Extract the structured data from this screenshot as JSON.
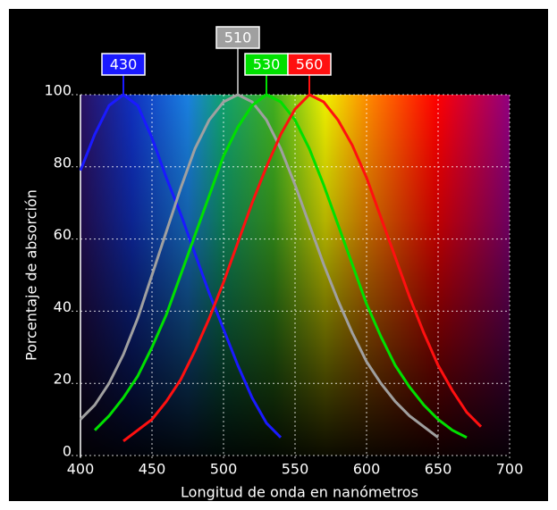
{
  "chart_data": {
    "type": "line",
    "xlabel": "Longitud de onda en nanómetros",
    "ylabel": "Porcentaje de absorción",
    "x": [
      400,
      410,
      420,
      430,
      440,
      450,
      460,
      470,
      480,
      490,
      500,
      510,
      520,
      530,
      540,
      550,
      560,
      570,
      580,
      590,
      600,
      610,
      620,
      630,
      640,
      650,
      660,
      670,
      680
    ],
    "series": [
      {
        "name": "430",
        "peak": 430,
        "color": "#1a1aff",
        "values": [
          79,
          89,
          97,
          100,
          97,
          88,
          77,
          67,
          56,
          45,
          35,
          25,
          16,
          9,
          5,
          null,
          null,
          null,
          null,
          null,
          null,
          null,
          null,
          null,
          null,
          null,
          null,
          null,
          null
        ]
      },
      {
        "name": "510",
        "peak": 510,
        "color": "#a0a0a0",
        "values": [
          10,
          14,
          20,
          28,
          38,
          50,
          62,
          74,
          85,
          93,
          98,
          100,
          98,
          93,
          85,
          75,
          64,
          53,
          43,
          34,
          26,
          20,
          15,
          11,
          8,
          5,
          null,
          null,
          null
        ]
      },
      {
        "name": "530",
        "peak": 530,
        "color": "#00e000",
        "values": [
          null,
          7,
          11,
          16,
          22,
          30,
          39,
          50,
          61,
          72,
          83,
          91,
          97,
          100,
          98,
          93,
          85,
          75,
          64,
          53,
          42,
          33,
          25,
          19,
          14,
          10,
          7,
          5,
          null
        ]
      },
      {
        "name": "560",
        "peak": 560,
        "color": "#ff1010",
        "values": [
          null,
          null,
          null,
          4,
          7,
          10,
          15,
          21,
          29,
          38,
          48,
          59,
          70,
          80,
          89,
          96,
          100,
          98,
          93,
          86,
          77,
          66,
          55,
          44,
          34,
          25,
          18,
          12,
          8
        ]
      }
    ],
    "xlim": [
      400,
      700
    ],
    "ylim": [
      0,
      100
    ],
    "xticks": [
      400,
      450,
      500,
      550,
      600,
      650,
      700
    ],
    "yticks": [
      0,
      20,
      40,
      60,
      80,
      100
    ],
    "grid": true
  }
}
